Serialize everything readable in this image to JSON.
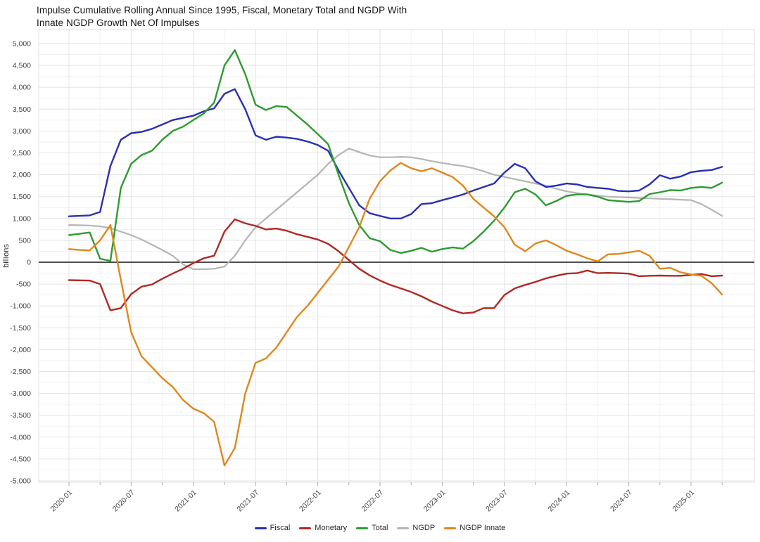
{
  "title": {
    "line1": "Impulse Cumulative Rolling Annual Since 1995, Fiscal, Monetary Total and NGDP With",
    "line2": "Innate NGDP Growth Net Of Impulses"
  },
  "y_axis": {
    "label": "billions",
    "min": -5000,
    "max": 5000,
    "major_step": 500,
    "minor_step": 250,
    "tick_labels": [
      "-5,000",
      "-4,500",
      "-4,000",
      "-3,500",
      "-3,000",
      "-2,500",
      "-2,000",
      "-1,500",
      "-1,000",
      "-500",
      "0",
      "500",
      "1,000",
      "1,500",
      "2,000",
      "2,500",
      "3,000",
      "3,500",
      "4,000",
      "4,500",
      "5,000"
    ]
  },
  "x_axis": {
    "tick_labels": [
      "2020-01",
      "2020-07",
      "2021-01",
      "2021-07",
      "2022-01",
      "2022-07",
      "2023-01",
      "2023-07",
      "2024-01",
      "2024-07",
      "2025-01"
    ],
    "tick_step_months": 6
  },
  "colors": {
    "fiscal": "#2a2fb4",
    "monetary": "#b22822",
    "total": "#2e9b31",
    "ngdp": "#b5b5b5",
    "ngdp_innate": "#e0871f",
    "zero_line": "#4d4d4d",
    "grid_major": "#e3e3e3",
    "grid_minor": "#f1f1f1",
    "plot_border": "#e0e0e0",
    "axis_text": "#444444",
    "title_text": "#151515"
  },
  "chart_data": {
    "type": "line",
    "title": "Impulse Cumulative Rolling Annual Since 1995, Fiscal, Monetary Total and NGDP With Innate NGDP Growth Net Of Impulses",
    "xlabel": "",
    "ylabel": "billions",
    "ylim": [
      -5000,
      5000
    ],
    "grid": true,
    "legend_position": "bottom",
    "x": [
      "2020-01",
      "2020-02",
      "2020-03",
      "2020-04",
      "2020-05",
      "2020-06",
      "2020-07",
      "2020-08",
      "2020-09",
      "2020-10",
      "2020-11",
      "2020-12",
      "2021-01",
      "2021-02",
      "2021-03",
      "2021-04",
      "2021-05",
      "2021-06",
      "2021-07",
      "2021-08",
      "2021-09",
      "2021-10",
      "2021-11",
      "2021-12",
      "2022-01",
      "2022-02",
      "2022-03",
      "2022-04",
      "2022-05",
      "2022-06",
      "2022-07",
      "2022-08",
      "2022-09",
      "2022-10",
      "2022-11",
      "2022-12",
      "2023-01",
      "2023-02",
      "2023-03",
      "2023-04",
      "2023-05",
      "2023-06",
      "2023-07",
      "2023-08",
      "2023-09",
      "2023-10",
      "2023-11",
      "2023-12",
      "2024-01",
      "2024-02",
      "2024-03",
      "2024-04",
      "2024-05",
      "2024-06",
      "2024-07",
      "2024-08",
      "2024-09",
      "2024-10",
      "2024-11",
      "2024-12",
      "2025-01",
      "2025-02",
      "2025-03",
      "2025-04"
    ],
    "series": [
      {
        "name": "Fiscal",
        "color": "#2a2fb4",
        "values": [
          1050,
          1060,
          1070,
          1150,
          2200,
          2800,
          2950,
          2980,
          3050,
          3150,
          3250,
          3300,
          3350,
          3450,
          3520,
          3850,
          3960,
          3500,
          2900,
          2800,
          2870,
          2850,
          2820,
          2760,
          2680,
          2550,
          2100,
          1700,
          1300,
          1120,
          1060,
          1000,
          1000,
          1100,
          1330,
          1350,
          1420,
          1480,
          1550,
          1640,
          1720,
          1800,
          2050,
          2250,
          2150,
          1850,
          1720,
          1750,
          1800,
          1780,
          1720,
          1700,
          1680,
          1630,
          1620,
          1640,
          1780,
          1990,
          1910,
          1960,
          2060,
          2090,
          2110,
          2180
        ]
      },
      {
        "name": "Monetary",
        "color": "#b22822",
        "values": [
          -410,
          -415,
          -420,
          -500,
          -1100,
          -1050,
          -730,
          -560,
          -510,
          -380,
          -260,
          -150,
          -20,
          90,
          150,
          700,
          980,
          890,
          830,
          750,
          770,
          720,
          640,
          580,
          520,
          420,
          250,
          50,
          -150,
          -300,
          -420,
          -520,
          -600,
          -680,
          -780,
          -900,
          -1000,
          -1100,
          -1170,
          -1150,
          -1050,
          -1050,
          -750,
          -600,
          -520,
          -450,
          -370,
          -310,
          -260,
          -250,
          -190,
          -250,
          -245,
          -250,
          -260,
          -320,
          -310,
          -305,
          -310,
          -310,
          -290,
          -270,
          -320,
          -305
        ]
      },
      {
        "name": "Total",
        "color": "#2e9b31",
        "values": [
          620,
          650,
          680,
          80,
          30,
          1700,
          2250,
          2450,
          2550,
          2800,
          3000,
          3100,
          3250,
          3400,
          3650,
          4500,
          4850,
          4300,
          3600,
          3480,
          3570,
          3550,
          3350,
          3150,
          2930,
          2700,
          2000,
          1350,
          850,
          550,
          480,
          280,
          210,
          260,
          330,
          240,
          300,
          340,
          310,
          480,
          700,
          950,
          1250,
          1600,
          1680,
          1550,
          1300,
          1400,
          1520,
          1550,
          1550,
          1500,
          1420,
          1400,
          1380,
          1400,
          1560,
          1600,
          1650,
          1640,
          1700,
          1720,
          1700,
          1820
        ]
      },
      {
        "name": "NGDP",
        "color": "#b5b5b5",
        "values": [
          850,
          845,
          840,
          820,
          780,
          700,
          620,
          520,
          400,
          280,
          150,
          -50,
          -160,
          -160,
          -150,
          -100,
          150,
          500,
          800,
          1000,
          1200,
          1400,
          1600,
          1800,
          2000,
          2250,
          2450,
          2600,
          2520,
          2440,
          2400,
          2400,
          2410,
          2400,
          2360,
          2310,
          2270,
          2230,
          2200,
          2150,
          2080,
          2000,
          1950,
          1900,
          1850,
          1800,
          1750,
          1680,
          1620,
          1580,
          1550,
          1520,
          1500,
          1490,
          1480,
          1470,
          1460,
          1450,
          1440,
          1430,
          1420,
          1330,
          1200,
          1060
        ]
      },
      {
        "name": "NGDP Innate",
        "color": "#e0871f",
        "values": [
          300,
          280,
          270,
          500,
          850,
          -400,
          -1600,
          -2150,
          -2400,
          -2650,
          -2850,
          -3150,
          -3350,
          -3450,
          -3650,
          -4650,
          -4250,
          -3000,
          -2300,
          -2200,
          -1950,
          -1600,
          -1250,
          -1000,
          -700,
          -400,
          -100,
          350,
          800,
          1450,
          1850,
          2100,
          2270,
          2150,
          2080,
          2150,
          2050,
          1950,
          1750,
          1450,
          1250,
          1050,
          800,
          400,
          250,
          430,
          500,
          390,
          260,
          180,
          90,
          20,
          180,
          190,
          225,
          260,
          150,
          -150,
          -130,
          -230,
          -280,
          -310,
          -480,
          -740
        ]
      }
    ]
  }
}
